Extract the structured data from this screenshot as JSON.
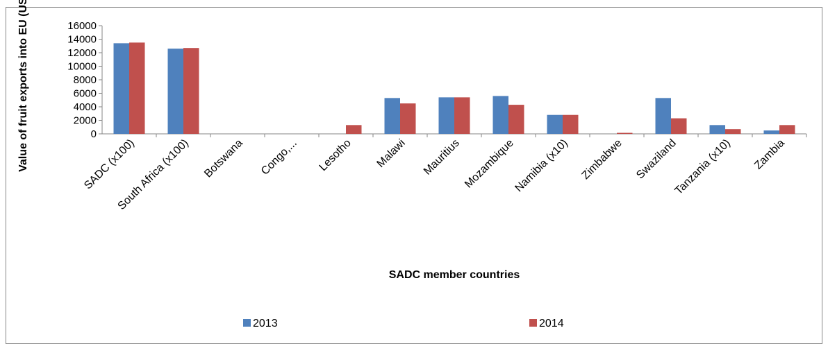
{
  "chart_data": {
    "type": "bar",
    "y_label": "Value of fruit exports into EU (US$)",
    "x_label": "SADC member countries",
    "categories": [
      "SADC (x100)",
      "South Africa (x100)",
      "Botswana",
      "Congo,...",
      "Lesotho",
      "Malawi",
      "Mauritius",
      "Mozambique",
      "Namibia (x10)",
      "Zimbabwe",
      "Swaziland",
      "Tanzania (x10)",
      "Zambia"
    ],
    "series": [
      {
        "name": "2013",
        "color": "#4f81bd",
        "values": [
          13400,
          12600,
          0,
          0,
          0,
          5300,
          5400,
          5600,
          2800,
          0,
          5300,
          1300,
          500
        ]
      },
      {
        "name": "2014",
        "color": "#c0504d",
        "values": [
          13500,
          12700,
          0,
          0,
          1300,
          4500,
          5400,
          4300,
          2800,
          150,
          2300,
          700,
          1300
        ]
      }
    ],
    "ylim": [
      0,
      16000
    ],
    "yticks": [
      0,
      2000,
      4000,
      6000,
      8000,
      10000,
      12000,
      14000,
      16000
    ],
    "grid": false
  }
}
